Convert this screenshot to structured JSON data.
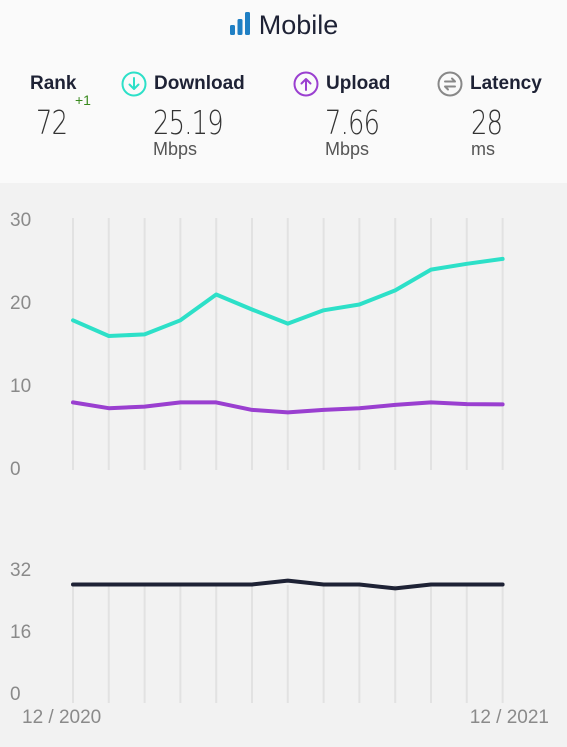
{
  "header": {
    "title": "Mobile",
    "icon": "signal-bars-icon"
  },
  "stats": {
    "rank": {
      "label": "Rank",
      "value": "72",
      "change": "+1"
    },
    "download": {
      "label": "Download",
      "value": "25.19",
      "unit": "Mbps",
      "icon": "download-arrow-icon",
      "color": "#2de0c8"
    },
    "upload": {
      "label": "Upload",
      "value": "7.66",
      "unit": "Mbps",
      "icon": "upload-arrow-icon",
      "color": "#9a3fd0"
    },
    "latency": {
      "label": "Latency",
      "value": "28",
      "unit": "ms",
      "icon": "latency-arrows-icon",
      "color": "#888888"
    }
  },
  "chart_data": [
    {
      "type": "line",
      "x": [
        "12/2020",
        "01/2021",
        "02/2021",
        "03/2021",
        "04/2021",
        "05/2021",
        "06/2021",
        "07/2021",
        "08/2021",
        "09/2021",
        "10/2021",
        "11/2021",
        "12/2021"
      ],
      "series": [
        {
          "name": "Download",
          "color": "#2de0c8",
          "values": [
            17.8,
            15.9,
            16.1,
            17.8,
            20.9,
            19.1,
            17.4,
            19.0,
            19.7,
            21.4,
            23.9,
            24.6,
            25.19
          ]
        },
        {
          "name": "Upload",
          "color": "#9a3fd0",
          "values": [
            7.9,
            7.2,
            7.4,
            7.9,
            7.9,
            7.0,
            6.7,
            7.0,
            7.2,
            7.6,
            7.9,
            7.7,
            7.66
          ]
        }
      ],
      "ylim": [
        0,
        30
      ],
      "yticks": [
        0,
        10,
        20,
        30
      ],
      "grid": true
    },
    {
      "type": "line",
      "x": [
        "12/2020",
        "01/2021",
        "02/2021",
        "03/2021",
        "04/2021",
        "05/2021",
        "06/2021",
        "07/2021",
        "08/2021",
        "09/2021",
        "10/2021",
        "11/2021",
        "12/2021"
      ],
      "series": [
        {
          "name": "Latency",
          "color": "#1e2235",
          "values": [
            28,
            28,
            28,
            28,
            28,
            28,
            29,
            28,
            28,
            27,
            28,
            28,
            28
          ]
        }
      ],
      "ylim": [
        0,
        32
      ],
      "yticks": [
        0,
        16,
        32
      ],
      "xtick_labels": [
        "12 / 2020",
        "12 / 2021"
      ],
      "grid": true
    }
  ]
}
